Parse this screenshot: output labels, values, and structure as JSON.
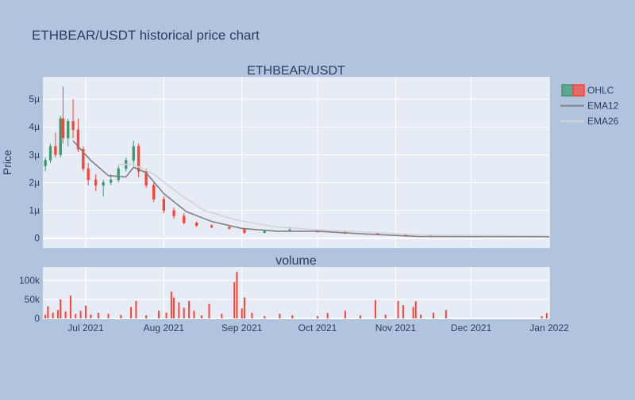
{
  "page": {
    "title": "ETHBEAR/USDT historical price chart"
  },
  "colors": {
    "background": "#b0c4de",
    "plot_bg": "#e5ecf6",
    "grid": "#ffffff",
    "up": "#3d9970",
    "down": "#ff4136",
    "ema12": "#808080",
    "ema26": "#d3d3d3",
    "text": "#2a3f5f"
  },
  "chart_data": [
    {
      "type": "candlestick",
      "title": "ETHBEAR/USDT",
      "ylabel": "Price",
      "ylim": [
        -0.35,
        5.8
      ],
      "yunit": "µ (×1e-6 USDT)",
      "y_ticks": [
        0,
        1,
        2,
        3,
        4,
        5
      ],
      "y_tick_labels": [
        "0",
        "1µ",
        "2µ",
        "3µ",
        "4µ",
        "5µ"
      ],
      "x_range": [
        "2021-06-14",
        "2022-01-01"
      ],
      "legend_position": "top-right",
      "legend": [
        {
          "name": "OHLC",
          "icon": "candlestick-legend-icon"
        },
        {
          "name": "EMA12",
          "icon": "line-legend-icon"
        },
        {
          "name": "EMA26",
          "icon": "line-legend-icon"
        }
      ],
      "ohlc_sample": [
        {
          "date": "2021-06-15",
          "open": 2.6,
          "high": 2.9,
          "low": 2.4,
          "close": 2.8
        },
        {
          "date": "2021-06-17",
          "open": 2.8,
          "high": 3.4,
          "low": 2.7,
          "close": 3.3
        },
        {
          "date": "2021-06-19",
          "open": 3.3,
          "high": 3.8,
          "low": 2.9,
          "close": 3.0
        },
        {
          "date": "2021-06-21",
          "open": 3.0,
          "high": 4.4,
          "low": 2.9,
          "close": 4.3
        },
        {
          "date": "2021-06-22",
          "open": 4.3,
          "high": 5.45,
          "low": 3.4,
          "close": 3.6
        },
        {
          "date": "2021-06-24",
          "open": 3.6,
          "high": 4.3,
          "low": 3.3,
          "close": 4.2
        },
        {
          "date": "2021-06-26",
          "open": 4.2,
          "high": 5.0,
          "low": 3.6,
          "close": 3.9
        },
        {
          "date": "2021-06-28",
          "open": 3.9,
          "high": 4.3,
          "low": 3.1,
          "close": 3.2
        },
        {
          "date": "2021-06-30",
          "open": 3.2,
          "high": 3.3,
          "low": 2.4,
          "close": 2.5
        },
        {
          "date": "2021-07-02",
          "open": 2.5,
          "high": 2.7,
          "low": 1.9,
          "close": 2.1
        },
        {
          "date": "2021-07-05",
          "open": 2.1,
          "high": 2.3,
          "low": 1.7,
          "close": 1.9
        },
        {
          "date": "2021-07-08",
          "open": 1.9,
          "high": 2.1,
          "low": 1.5,
          "close": 2.0
        },
        {
          "date": "2021-07-11",
          "open": 2.0,
          "high": 2.3,
          "low": 1.9,
          "close": 2.1
        },
        {
          "date": "2021-07-14",
          "open": 2.1,
          "high": 2.6,
          "low": 2.0,
          "close": 2.5
        },
        {
          "date": "2021-07-17",
          "open": 2.5,
          "high": 2.9,
          "low": 2.4,
          "close": 2.8
        },
        {
          "date": "2021-07-20",
          "open": 2.8,
          "high": 3.5,
          "low": 2.6,
          "close": 3.3
        },
        {
          "date": "2021-07-22",
          "open": 3.3,
          "high": 3.4,
          "low": 2.2,
          "close": 2.4
        },
        {
          "date": "2021-07-25",
          "open": 2.4,
          "high": 2.5,
          "low": 1.8,
          "close": 1.9
        },
        {
          "date": "2021-07-28",
          "open": 1.9,
          "high": 2.0,
          "low": 1.3,
          "close": 1.4
        },
        {
          "date": "2021-08-01",
          "open": 1.4,
          "high": 1.5,
          "low": 0.9,
          "close": 1.0
        },
        {
          "date": "2021-08-05",
          "open": 1.0,
          "high": 1.1,
          "low": 0.7,
          "close": 0.8
        },
        {
          "date": "2021-08-09",
          "open": 0.8,
          "high": 0.9,
          "low": 0.5,
          "close": 0.55
        },
        {
          "date": "2021-08-14",
          "open": 0.55,
          "high": 0.6,
          "low": 0.4,
          "close": 0.45
        },
        {
          "date": "2021-08-20",
          "open": 0.45,
          "high": 0.5,
          "low": 0.35,
          "close": 0.4
        },
        {
          "date": "2021-08-27",
          "open": 0.4,
          "high": 0.45,
          "low": 0.3,
          "close": 0.35
        },
        {
          "date": "2021-09-02",
          "open": 0.35,
          "high": 0.38,
          "low": 0.15,
          "close": 0.2
        },
        {
          "date": "2021-09-10",
          "open": 0.2,
          "high": 0.3,
          "low": 0.18,
          "close": 0.28
        },
        {
          "date": "2021-09-20",
          "open": 0.28,
          "high": 0.42,
          "low": 0.25,
          "close": 0.3
        },
        {
          "date": "2021-10-01",
          "open": 0.3,
          "high": 0.32,
          "low": 0.2,
          "close": 0.22
        },
        {
          "date": "2021-10-12",
          "open": 0.22,
          "high": 0.25,
          "low": 0.15,
          "close": 0.17
        },
        {
          "date": "2021-10-25",
          "open": 0.17,
          "high": 0.19,
          "low": 0.1,
          "close": 0.12
        },
        {
          "date": "2021-11-05",
          "open": 0.12,
          "high": 0.13,
          "low": 0.06,
          "close": 0.08
        },
        {
          "date": "2021-11-15",
          "open": 0.08,
          "high": 0.09,
          "low": 0.03,
          "close": 0.05
        },
        {
          "date": "2021-12-31",
          "open": 0.05,
          "high": 0.07,
          "low": 0.04,
          "close": 0.06
        }
      ],
      "ema12": [
        {
          "date": "2021-06-26",
          "value": 3.5
        },
        {
          "date": "2021-07-03",
          "value": 2.8
        },
        {
          "date": "2021-07-10",
          "value": 2.25
        },
        {
          "date": "2021-07-17",
          "value": 2.2
        },
        {
          "date": "2021-07-20",
          "value": 2.55
        },
        {
          "date": "2021-07-25",
          "value": 2.35
        },
        {
          "date": "2021-08-01",
          "value": 1.6
        },
        {
          "date": "2021-08-10",
          "value": 0.95
        },
        {
          "date": "2021-08-20",
          "value": 0.6
        },
        {
          "date": "2021-09-01",
          "value": 0.35
        },
        {
          "date": "2021-09-15",
          "value": 0.25
        },
        {
          "date": "2021-10-01",
          "value": 0.25
        },
        {
          "date": "2021-10-20",
          "value": 0.15
        },
        {
          "date": "2021-11-10",
          "value": 0.06
        },
        {
          "date": "2022-01-01",
          "value": 0.05
        }
      ],
      "ema26": [
        {
          "date": "2021-07-14",
          "value": 2.65
        },
        {
          "date": "2021-07-20",
          "value": 2.65
        },
        {
          "date": "2021-07-28",
          "value": 2.3
        },
        {
          "date": "2021-08-07",
          "value": 1.6
        },
        {
          "date": "2021-08-17",
          "value": 1.0
        },
        {
          "date": "2021-08-30",
          "value": 0.65
        },
        {
          "date": "2021-09-15",
          "value": 0.4
        },
        {
          "date": "2021-10-01",
          "value": 0.3
        },
        {
          "date": "2021-10-20",
          "value": 0.22
        },
        {
          "date": "2021-11-10",
          "value": 0.12
        },
        {
          "date": "2022-01-01",
          "value": 0.08
        }
      ]
    },
    {
      "type": "bar",
      "title": "volume",
      "ylim": [
        0,
        135000
      ],
      "y_ticks": [
        0,
        50000,
        100000
      ],
      "y_tick_labels": [
        "0",
        "50k",
        "100k"
      ],
      "x_ticks": [
        "2021-07-01",
        "2021-08-01",
        "2021-09-01",
        "2021-10-01",
        "2021-11-01",
        "2021-12-01",
        "2022-01-01"
      ],
      "x_tick_labels": [
        "Jul 2021",
        "Aug 2021",
        "Sep 2021",
        "Oct 2021",
        "Nov 2021",
        "Dec 2021",
        "Jan 2022"
      ],
      "volume_sample": [
        {
          "date": "2021-06-15",
          "value": 10000
        },
        {
          "date": "2021-06-16",
          "value": 32000
        },
        {
          "date": "2021-06-18",
          "value": 15000
        },
        {
          "date": "2021-06-20",
          "value": 22000
        },
        {
          "date": "2021-06-21",
          "value": 50000
        },
        {
          "date": "2021-06-23",
          "value": 18000
        },
        {
          "date": "2021-06-25",
          "value": 60000
        },
        {
          "date": "2021-06-27",
          "value": 12000
        },
        {
          "date": "2021-06-29",
          "value": 20000
        },
        {
          "date": "2021-07-01",
          "value": 34000
        },
        {
          "date": "2021-07-03",
          "value": 10000
        },
        {
          "date": "2021-07-06",
          "value": 15000
        },
        {
          "date": "2021-07-10",
          "value": 12000
        },
        {
          "date": "2021-07-15",
          "value": 9000
        },
        {
          "date": "2021-07-19",
          "value": 30000
        },
        {
          "date": "2021-07-21",
          "value": 46000
        },
        {
          "date": "2021-07-25",
          "value": 8000
        },
        {
          "date": "2021-07-30",
          "value": 20000
        },
        {
          "date": "2021-08-02",
          "value": 15000
        },
        {
          "date": "2021-08-04",
          "value": 70000
        },
        {
          "date": "2021-08-05",
          "value": 55000
        },
        {
          "date": "2021-08-07",
          "value": 42000
        },
        {
          "date": "2021-08-09",
          "value": 28000
        },
        {
          "date": "2021-08-11",
          "value": 46000
        },
        {
          "date": "2021-08-13",
          "value": 20000
        },
        {
          "date": "2021-08-16",
          "value": 8000
        },
        {
          "date": "2021-08-19",
          "value": 38000
        },
        {
          "date": "2021-08-24",
          "value": 12000
        },
        {
          "date": "2021-08-29",
          "value": 95000
        },
        {
          "date": "2021-08-30",
          "value": 122000
        },
        {
          "date": "2021-09-01",
          "value": 26000
        },
        {
          "date": "2021-09-02",
          "value": 55000
        },
        {
          "date": "2021-09-05",
          "value": 15000
        },
        {
          "date": "2021-09-10",
          "value": 6000
        },
        {
          "date": "2021-09-16",
          "value": 12000
        },
        {
          "date": "2021-09-21",
          "value": 8000
        },
        {
          "date": "2021-10-01",
          "value": 6000
        },
        {
          "date": "2021-10-05",
          "value": 14000
        },
        {
          "date": "2021-10-12",
          "value": 20000
        },
        {
          "date": "2021-10-18",
          "value": 8000
        },
        {
          "date": "2021-10-24",
          "value": 48000
        },
        {
          "date": "2021-10-28",
          "value": 10000
        },
        {
          "date": "2021-11-02",
          "value": 46000
        },
        {
          "date": "2021-11-04",
          "value": 35000
        },
        {
          "date": "2021-11-08",
          "value": 30000
        },
        {
          "date": "2021-11-09",
          "value": 45000
        },
        {
          "date": "2021-11-11",
          "value": 10000
        },
        {
          "date": "2021-11-16",
          "value": 15000
        },
        {
          "date": "2021-11-21",
          "value": 22000
        },
        {
          "date": "2021-12-29",
          "value": 6000
        },
        {
          "date": "2021-12-31",
          "value": 14000
        }
      ]
    }
  ]
}
